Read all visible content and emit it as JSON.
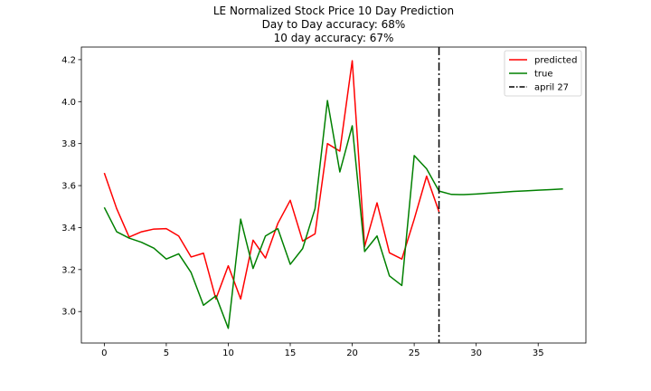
{
  "chart_data": {
    "type": "line",
    "title_lines": [
      "LE Normalized Stock Price 10 Day Prediction",
      "Day to Day accuracy: 68%",
      "10 day accuracy: 67%"
    ],
    "xlabel": "",
    "ylabel": "",
    "xlim": [
      -1.85,
      38.85
    ],
    "ylim": [
      2.85,
      4.26
    ],
    "x_ticks": [
      0,
      5,
      10,
      15,
      20,
      25,
      30,
      35
    ],
    "y_ticks": [
      3.0,
      3.2,
      3.4,
      3.6,
      3.8,
      4.0,
      4.2
    ],
    "y_tick_labels": [
      "3.0",
      "3.2",
      "3.4",
      "3.6",
      "3.8",
      "4.0",
      "4.2"
    ],
    "grid": false,
    "legend_position": "top-right",
    "series": [
      {
        "name": "predicted",
        "color": "#ff0000",
        "style": "solid",
        "x": [
          0,
          1,
          2,
          3,
          4,
          5,
          6,
          7,
          8,
          9,
          10,
          11,
          12,
          13,
          14,
          15,
          16,
          17,
          18,
          19,
          20,
          21,
          22,
          23,
          24,
          25,
          26,
          27
        ],
        "y": [
          3.66,
          3.49,
          3.355,
          3.38,
          3.393,
          3.395,
          3.36,
          3.26,
          3.278,
          3.06,
          3.218,
          3.06,
          3.34,
          3.255,
          3.42,
          3.53,
          3.336,
          3.37,
          3.8,
          3.764,
          4.195,
          3.31,
          3.518,
          3.28,
          3.25,
          3.44,
          3.645,
          3.475
        ]
      },
      {
        "name": "true",
        "color": "#008000",
        "style": "solid",
        "x": [
          0,
          1,
          2,
          3,
          4,
          5,
          6,
          7,
          8,
          9,
          10,
          11,
          12,
          13,
          14,
          15,
          16,
          17,
          18,
          19,
          20,
          21,
          22,
          23,
          24,
          25,
          26,
          27,
          28,
          29,
          30,
          31,
          32,
          33,
          34,
          35,
          36,
          37
        ],
        "y": [
          3.496,
          3.38,
          3.35,
          3.33,
          3.302,
          3.25,
          3.275,
          3.186,
          3.03,
          3.075,
          2.92,
          3.44,
          3.205,
          3.36,
          3.395,
          3.225,
          3.3,
          3.49,
          4.005,
          3.665,
          3.885,
          3.286,
          3.36,
          3.17,
          3.124,
          3.743,
          3.68,
          3.574,
          3.558,
          3.557,
          3.56,
          3.564,
          3.568,
          3.572,
          3.575,
          3.578,
          3.581,
          3.584
        ]
      },
      {
        "name": "april 27",
        "color": "#000000",
        "style": "dashdot",
        "vertical_line_x": 27
      }
    ]
  }
}
